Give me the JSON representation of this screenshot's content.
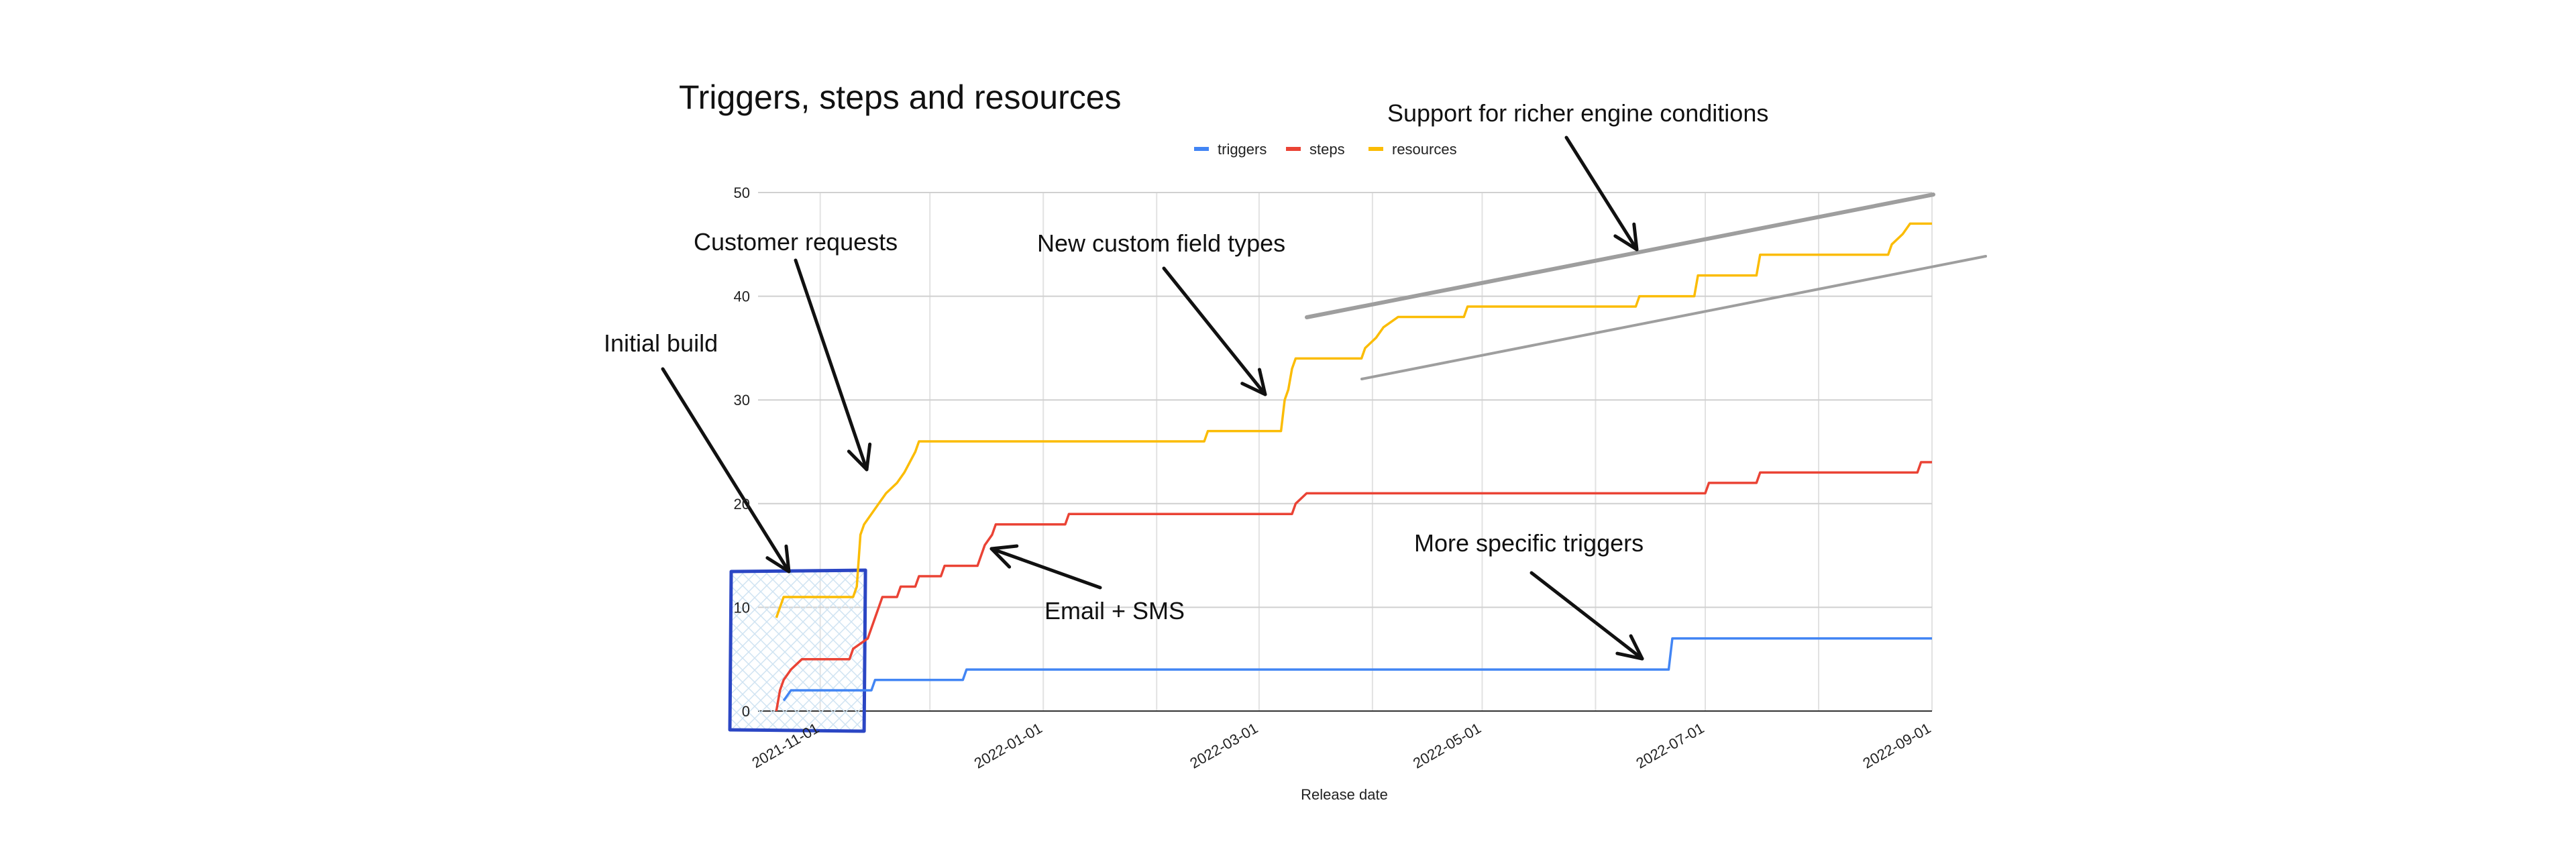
{
  "chart_data": {
    "type": "line",
    "title": "Triggers, steps and resources",
    "xlabel": "Release date",
    "ylabel": "",
    "ylim": [
      0,
      50
    ],
    "yticks": [
      0,
      10,
      20,
      30,
      40,
      50
    ],
    "xlim": [
      "2021-10-15",
      "2022-09-01"
    ],
    "xticks": [
      "2021-11-01",
      "2022-01-01",
      "2022-03-01",
      "2022-05-01",
      "2022-07-01",
      "2022-09-01"
    ],
    "grid": true,
    "legend_position": "top",
    "series": [
      {
        "name": "triggers",
        "color": "#4285F4",
        "points": [
          [
            "2021-10-22",
            1
          ],
          [
            "2021-10-24",
            2
          ],
          [
            "2021-11-15",
            2
          ],
          [
            "2021-11-16",
            3
          ],
          [
            "2021-12-10",
            3
          ],
          [
            "2021-12-11",
            4
          ],
          [
            "2022-06-21",
            4
          ],
          [
            "2022-06-22",
            7
          ],
          [
            "2022-09-01",
            7
          ]
        ]
      },
      {
        "name": "steps",
        "color": "#EA4335",
        "points": [
          [
            "2021-10-20",
            0
          ],
          [
            "2021-10-21",
            2
          ],
          [
            "2021-10-22",
            3
          ],
          [
            "2021-10-24",
            4
          ],
          [
            "2021-10-27",
            5
          ],
          [
            "2021-11-09",
            5
          ],
          [
            "2021-11-10",
            6
          ],
          [
            "2021-11-14",
            7
          ],
          [
            "2021-11-15",
            8
          ],
          [
            "2021-11-16",
            9
          ],
          [
            "2021-11-17",
            10
          ],
          [
            "2021-11-18",
            11
          ],
          [
            "2021-11-22",
            11
          ],
          [
            "2021-11-23",
            12
          ],
          [
            "2021-11-27",
            12
          ],
          [
            "2021-11-28",
            13
          ],
          [
            "2021-12-04",
            13
          ],
          [
            "2021-12-05",
            14
          ],
          [
            "2021-12-14",
            14
          ],
          [
            "2021-12-15",
            15
          ],
          [
            "2021-12-16",
            16
          ],
          [
            "2021-12-18",
            17
          ],
          [
            "2021-12-19",
            18
          ],
          [
            "2022-01-07",
            18
          ],
          [
            "2022-01-08",
            19
          ],
          [
            "2022-03-10",
            19
          ],
          [
            "2022-03-11",
            20
          ],
          [
            "2022-03-14",
            21
          ],
          [
            "2022-07-01",
            21
          ],
          [
            "2022-07-02",
            22
          ],
          [
            "2022-07-15",
            22
          ],
          [
            "2022-07-16",
            23
          ],
          [
            "2022-08-28",
            23
          ],
          [
            "2022-08-29",
            24
          ],
          [
            "2022-09-01",
            24
          ]
        ]
      },
      {
        "name": "resources",
        "color": "#FBBC04",
        "points": [
          [
            "2021-10-20",
            9
          ],
          [
            "2021-10-21",
            10
          ],
          [
            "2021-10-22",
            11
          ],
          [
            "2021-11-10",
            11
          ],
          [
            "2021-11-11",
            12
          ],
          [
            "2021-11-12",
            17
          ],
          [
            "2021-11-13",
            18
          ],
          [
            "2021-11-15",
            19
          ],
          [
            "2021-11-17",
            20
          ],
          [
            "2021-11-19",
            21
          ],
          [
            "2021-11-22",
            22
          ],
          [
            "2021-11-24",
            23
          ],
          [
            "2021-11-27",
            25
          ],
          [
            "2021-11-28",
            26
          ],
          [
            "2022-02-14",
            26
          ],
          [
            "2022-02-15",
            27
          ],
          [
            "2022-03-07",
            27
          ],
          [
            "2022-03-08",
            30
          ],
          [
            "2022-03-09",
            31
          ],
          [
            "2022-03-10",
            33
          ],
          [
            "2022-03-11",
            34
          ],
          [
            "2022-03-29",
            34
          ],
          [
            "2022-03-30",
            35
          ],
          [
            "2022-04-02",
            36
          ],
          [
            "2022-04-04",
            37
          ],
          [
            "2022-04-08",
            38
          ],
          [
            "2022-04-26",
            38
          ],
          [
            "2022-04-27",
            39
          ],
          [
            "2022-06-12",
            39
          ],
          [
            "2022-06-13",
            40
          ],
          [
            "2022-06-28",
            40
          ],
          [
            "2022-06-29",
            42
          ],
          [
            "2022-07-15",
            42
          ],
          [
            "2022-07-16",
            44
          ],
          [
            "2022-08-20",
            44
          ],
          [
            "2022-08-21",
            45
          ],
          [
            "2022-08-24",
            46
          ],
          [
            "2022-08-26",
            47
          ],
          [
            "2022-09-01",
            47
          ]
        ]
      }
    ],
    "annotations": [
      {
        "text": "Support for richer engine conditions"
      },
      {
        "text": "Customer requests"
      },
      {
        "text": "New custom field types"
      },
      {
        "text": "Initial build"
      },
      {
        "text": "More specific triggers"
      },
      {
        "text": "Email + SMS"
      }
    ]
  }
}
